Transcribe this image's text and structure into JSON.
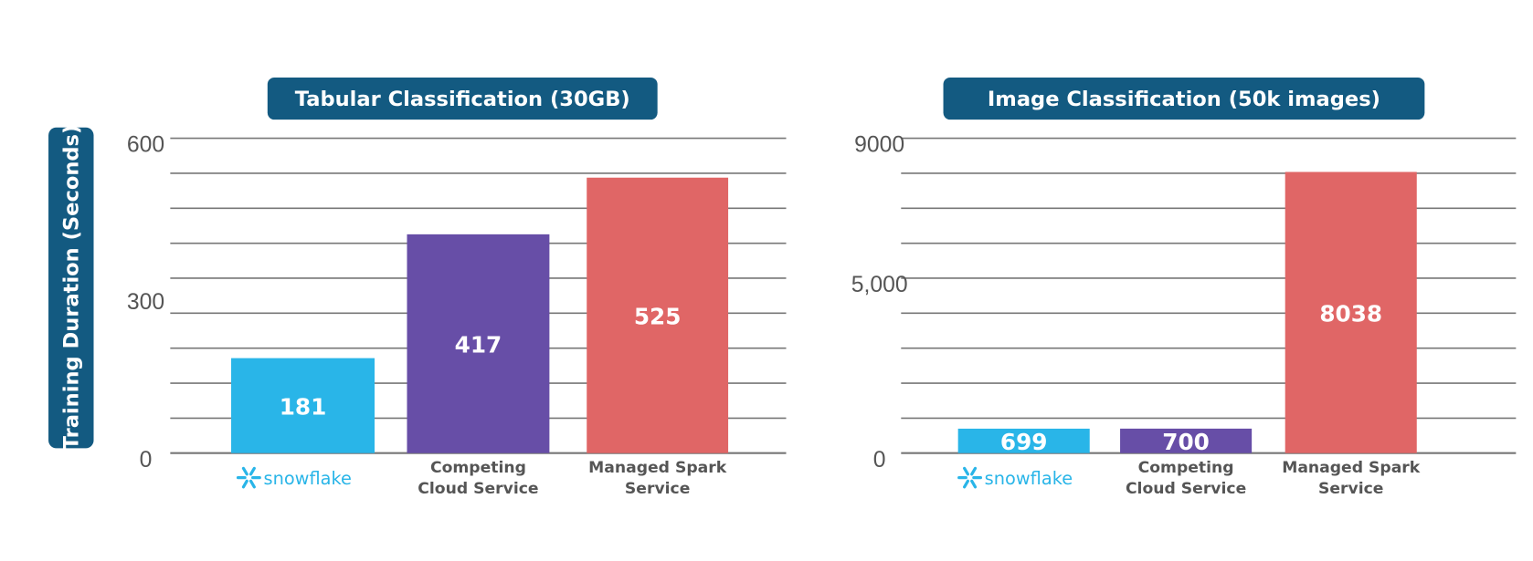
{
  "y_axis_label": "Training Duration (Seconds)",
  "chart_data": [
    {
      "type": "bar",
      "title": "Tabular Classification (30GB)",
      "ylabel": "Training Duration (Seconds)",
      "ylim": [
        0,
        600
      ],
      "yticks": [
        {
          "value": 0,
          "label": "0"
        },
        {
          "value": 300,
          "label": "300"
        },
        {
          "value": 600,
          "label": "600"
        }
      ],
      "categories": [
        "snowflake",
        "Competing Cloud Service",
        "Managed Spark Service"
      ],
      "values": [
        181,
        417,
        525
      ],
      "data_labels": [
        "181",
        "417",
        "525"
      ],
      "colors": [
        "#29b5e8",
        "#674ea7",
        "#e06666"
      ],
      "grid": true
    },
    {
      "type": "bar",
      "title": "Image Classification (50k images)",
      "ylim": [
        0,
        9000
      ],
      "yticks": [
        {
          "value": 0,
          "label": "0"
        },
        {
          "value": 5000,
          "label": "5,000"
        },
        {
          "value": 9000,
          "label": "9000"
        }
      ],
      "categories": [
        "snowflake",
        "Competing Cloud Service",
        "Managed Spark Service"
      ],
      "values": [
        699,
        700,
        8038
      ],
      "data_labels": [
        "699",
        "700",
        "8038"
      ],
      "colors": [
        "#29b5e8",
        "#674ea7",
        "#e06666"
      ],
      "grid": true
    }
  ],
  "colors": {
    "title_bg": "#135a81",
    "grid": "#777777"
  }
}
